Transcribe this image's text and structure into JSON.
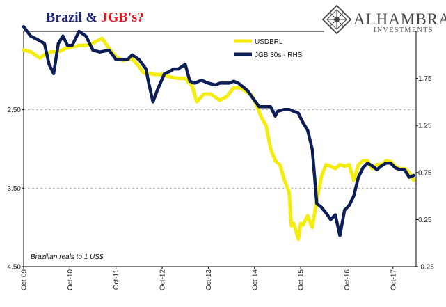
{
  "title": {
    "part1": "Brazil & ",
    "part2": "JGB's?",
    "color1": "#1a237e",
    "color2": "#e8141b"
  },
  "logo": {
    "name": "ALHAMBRA",
    "sub": "INVESTMENTS",
    "icon": "diamond-lattice-icon"
  },
  "chart_data": {
    "type": "line",
    "note": "Brazilian reals to 1 US$",
    "x_ticks": [
      "Oct-09",
      "Oct-10",
      "Oct-11",
      "Oct-12",
      "Oct-13",
      "Oct-14",
      "Oct-15",
      "Oct-16",
      "Oct-17"
    ],
    "x_range": [
      2009.75,
      2018.25
    ],
    "left_axis": {
      "inverted": true,
      "ylim": [
        1.5,
        4.5
      ],
      "ticks": [
        2.5,
        3.5,
        4.5
      ],
      "tick_labels": [
        "2.50",
        "3.50",
        "4.50"
      ]
    },
    "right_axis": {
      "ylim": [
        -0.25,
        2.25
      ],
      "ticks": [
        -0.25,
        0.25,
        0.75,
        1.25,
        1.75
      ],
      "tick_labels": [
        "-0.25",
        "0.25",
        "0.75",
        "1.25",
        "1.75"
      ]
    },
    "grid": "horizontal dashed",
    "legend_position": "top-center",
    "series": [
      {
        "name": "USDBRL",
        "axis": "left",
        "color": "#f4ec0b",
        "x": [
          2009.75,
          2009.9,
          2010.1,
          2010.25,
          2010.35,
          2010.5,
          2010.65,
          2010.8,
          2010.95,
          2011.1,
          2011.25,
          2011.45,
          2011.6,
          2011.75,
          2011.9,
          2012.1,
          2012.25,
          2012.35,
          2012.5,
          2012.6,
          2012.75,
          2012.9,
          2013.1,
          2013.25,
          2013.4,
          2013.5,
          2013.65,
          2013.8,
          2014.0,
          2014.15,
          2014.3,
          2014.45,
          2014.6,
          2014.7,
          2014.8,
          2014.9,
          2015.0,
          2015.1,
          2015.2,
          2015.3,
          2015.4,
          2015.5,
          2015.55,
          2015.6,
          2015.65,
          2015.7,
          2015.75,
          2015.8,
          2015.9,
          2016.0,
          2016.1,
          2016.2,
          2016.3,
          2016.4,
          2016.5,
          2016.6,
          2016.7,
          2016.8,
          2016.9,
          2017.0,
          2017.1,
          2017.2,
          2017.3,
          2017.4,
          2017.5,
          2017.6,
          2017.7,
          2017.8,
          2017.9,
          2018.0,
          2018.1,
          2018.2
        ],
        "values": [
          1.74,
          1.76,
          1.84,
          1.78,
          1.76,
          1.76,
          1.72,
          1.7,
          1.68,
          1.68,
          1.65,
          1.59,
          1.72,
          1.82,
          1.87,
          1.85,
          1.95,
          2.03,
          2.04,
          2.05,
          2.05,
          2.08,
          2.1,
          2.1,
          2.2,
          2.4,
          2.3,
          2.3,
          2.38,
          2.33,
          2.22,
          2.22,
          2.28,
          2.32,
          2.45,
          2.6,
          2.7,
          3.0,
          3.15,
          3.2,
          3.4,
          3.55,
          3.98,
          3.95,
          4.05,
          4.15,
          3.95,
          3.97,
          3.85,
          4.0,
          3.65,
          3.35,
          3.2,
          3.22,
          3.25,
          3.2,
          3.22,
          3.2,
          3.4,
          3.2,
          3.15,
          3.15,
          3.25,
          3.2,
          3.2,
          3.15,
          3.16,
          3.22,
          3.25,
          3.25,
          3.3,
          3.4
        ]
      },
      {
        "name": "JGB 30s - RHS",
        "axis": "right",
        "color": "#0d1d56",
        "x": [
          2009.75,
          2009.9,
          2010.1,
          2010.2,
          2010.3,
          2010.4,
          2010.5,
          2010.6,
          2010.7,
          2010.8,
          2010.95,
          2011.1,
          2011.25,
          2011.4,
          2011.6,
          2011.75,
          2011.9,
          2012.0,
          2012.1,
          2012.25,
          2012.4,
          2012.45,
          2012.55,
          2012.65,
          2012.8,
          2012.9,
          2013.0,
          2013.1,
          2013.25,
          2013.35,
          2013.45,
          2013.6,
          2013.75,
          2013.9,
          2014.0,
          2014.1,
          2014.2,
          2014.3,
          2014.4,
          2014.5,
          2014.6,
          2014.7,
          2014.85,
          2015.0,
          2015.1,
          2015.2,
          2015.25,
          2015.4,
          2015.5,
          2015.6,
          2015.7,
          2015.8,
          2015.9,
          2016.0,
          2016.05,
          2016.1,
          2016.2,
          2016.3,
          2016.4,
          2016.5,
          2016.6,
          2016.7,
          2016.8,
          2016.9,
          2017.0,
          2017.1,
          2017.2,
          2017.3,
          2017.4,
          2017.5,
          2017.6,
          2017.7,
          2017.8,
          2017.9,
          2018.0,
          2018.1,
          2018.2
        ],
        "values": [
          2.3,
          2.2,
          2.15,
          2.12,
          1.9,
          1.8,
          2.12,
          2.2,
          2.1,
          2.1,
          2.25,
          2.2,
          2.05,
          2.03,
          2.05,
          1.95,
          1.95,
          1.95,
          2.0,
          1.95,
          1.85,
          1.72,
          1.5,
          1.63,
          1.8,
          1.82,
          1.85,
          1.85,
          1.9,
          1.72,
          1.7,
          1.73,
          1.7,
          1.68,
          1.7,
          1.7,
          1.7,
          1.72,
          1.7,
          1.66,
          1.62,
          1.55,
          1.45,
          1.45,
          1.45,
          1.35,
          1.4,
          1.42,
          1.42,
          1.4,
          1.38,
          1.28,
          1.2,
          1.0,
          0.72,
          0.42,
          0.38,
          0.32,
          0.25,
          0.3,
          0.08,
          0.35,
          0.4,
          0.5,
          0.7,
          0.8,
          0.85,
          0.82,
          0.78,
          0.82,
          0.85,
          0.85,
          0.8,
          0.78,
          0.78,
          0.7,
          0.72
        ]
      }
    ]
  }
}
